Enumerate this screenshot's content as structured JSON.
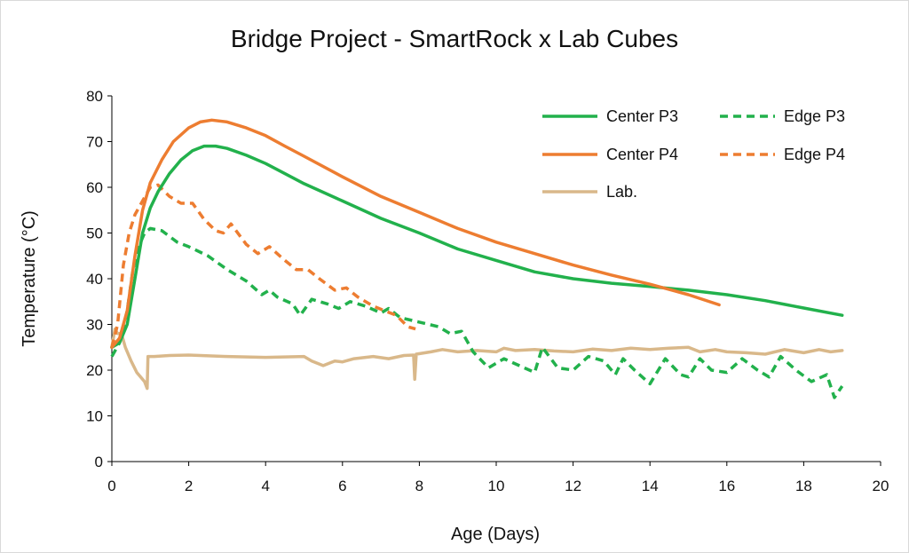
{
  "chart_data": {
    "type": "line",
    "title": "Bridge Project - SmartRock x Lab Cubes",
    "xlabel": "Age (Days)",
    "ylabel": "Temperature (°C)",
    "xlim": [
      0,
      20
    ],
    "ylim": [
      0,
      80
    ],
    "x_ticks": [
      0,
      2,
      4,
      6,
      8,
      10,
      12,
      14,
      16,
      18,
      20
    ],
    "y_ticks": [
      0,
      10,
      20,
      30,
      40,
      50,
      60,
      70,
      80
    ],
    "grid": false,
    "legend_position": "top-right",
    "series": [
      {
        "name": "Center P3",
        "color": "#22b14c",
        "dash": "solid",
        "points": [
          [
            0,
            25
          ],
          [
            0.2,
            26
          ],
          [
            0.4,
            30
          ],
          [
            0.6,
            40
          ],
          [
            0.8,
            50
          ],
          [
            1.0,
            55.5
          ],
          [
            1.2,
            59
          ],
          [
            1.5,
            63
          ],
          [
            1.8,
            66
          ],
          [
            2.1,
            68
          ],
          [
            2.4,
            69
          ],
          [
            2.7,
            69
          ],
          [
            3.0,
            68.5
          ],
          [
            3.5,
            67
          ],
          [
            4.0,
            65.2
          ],
          [
            4.5,
            63
          ],
          [
            5.0,
            60.8
          ],
          [
            6.0,
            57
          ],
          [
            7.0,
            53.2
          ],
          [
            8.0,
            50
          ],
          [
            9.0,
            46.5
          ],
          [
            10.0,
            44
          ],
          [
            11.0,
            41.5
          ],
          [
            12.0,
            40
          ],
          [
            13.0,
            39
          ],
          [
            14.0,
            38.3
          ],
          [
            15.0,
            37.5
          ],
          [
            16.0,
            36.5
          ],
          [
            17.0,
            35.2
          ],
          [
            18.0,
            33.6
          ],
          [
            19.0,
            32
          ]
        ]
      },
      {
        "name": "Edge P3",
        "color": "#22b14c",
        "dash": "dashed",
        "points": [
          [
            0,
            23
          ],
          [
            0.2,
            26
          ],
          [
            0.4,
            33
          ],
          [
            0.55,
            42
          ],
          [
            0.7,
            47
          ],
          [
            0.85,
            50
          ],
          [
            1.0,
            51
          ],
          [
            1.3,
            50.5
          ],
          [
            1.7,
            48
          ],
          [
            2.0,
            47
          ],
          [
            2.5,
            45
          ],
          [
            3.0,
            42
          ],
          [
            3.5,
            39.5
          ],
          [
            3.9,
            36.5
          ],
          [
            4.1,
            37.5
          ],
          [
            4.3,
            36
          ],
          [
            4.7,
            34.5
          ],
          [
            4.9,
            32
          ],
          [
            5.2,
            35.5
          ],
          [
            5.6,
            34.5
          ],
          [
            5.9,
            33.5
          ],
          [
            6.2,
            35
          ],
          [
            6.6,
            34
          ],
          [
            7.0,
            32.5
          ],
          [
            7.2,
            33.5
          ],
          [
            7.5,
            31.5
          ],
          [
            8.0,
            30.5
          ],
          [
            8.5,
            29.5
          ],
          [
            8.8,
            28
          ],
          [
            9.1,
            28.5
          ],
          [
            9.4,
            24
          ],
          [
            9.8,
            20.5
          ],
          [
            10.2,
            22.5
          ],
          [
            10.6,
            21
          ],
          [
            11.0,
            19.5
          ],
          [
            11.2,
            25
          ],
          [
            11.6,
            20.5
          ],
          [
            12.0,
            20
          ],
          [
            12.4,
            23
          ],
          [
            12.8,
            22
          ],
          [
            13.1,
            19
          ],
          [
            13.3,
            22.5
          ],
          [
            13.6,
            20
          ],
          [
            14.0,
            17
          ],
          [
            14.4,
            22.5
          ],
          [
            14.8,
            19
          ],
          [
            15.0,
            18.5
          ],
          [
            15.3,
            22.5
          ],
          [
            15.6,
            20
          ],
          [
            16.0,
            19.5
          ],
          [
            16.4,
            22.5
          ],
          [
            16.8,
            20
          ],
          [
            17.1,
            18.5
          ],
          [
            17.4,
            23
          ],
          [
            17.8,
            20
          ],
          [
            18.2,
            17.5
          ],
          [
            18.6,
            19
          ],
          [
            18.8,
            14
          ],
          [
            19.0,
            16.5
          ]
        ]
      },
      {
        "name": "Center P4",
        "color": "#ed7d31",
        "dash": "solid",
        "points": [
          [
            0,
            25
          ],
          [
            0.2,
            27
          ],
          [
            0.4,
            33
          ],
          [
            0.6,
            45
          ],
          [
            0.8,
            55
          ],
          [
            1.0,
            61
          ],
          [
            1.3,
            66
          ],
          [
            1.6,
            70
          ],
          [
            2.0,
            73
          ],
          [
            2.3,
            74.3
          ],
          [
            2.6,
            74.7
          ],
          [
            3.0,
            74.3
          ],
          [
            3.5,
            73
          ],
          [
            4.0,
            71.3
          ],
          [
            4.5,
            69
          ],
          [
            5.0,
            66.8
          ],
          [
            6.0,
            62.3
          ],
          [
            7.0,
            58
          ],
          [
            8.0,
            54.5
          ],
          [
            9.0,
            51
          ],
          [
            10.0,
            48
          ],
          [
            11.0,
            45.5
          ],
          [
            12.0,
            43
          ],
          [
            13.0,
            40.8
          ],
          [
            14.0,
            38.8
          ],
          [
            15.0,
            36.5
          ],
          [
            15.8,
            34.3
          ]
        ]
      },
      {
        "name": "Edge P4",
        "color": "#ed7d31",
        "dash": "dashed",
        "points": [
          [
            0,
            25
          ],
          [
            0.15,
            30
          ],
          [
            0.3,
            43
          ],
          [
            0.45,
            50
          ],
          [
            0.6,
            54
          ],
          [
            0.8,
            57
          ],
          [
            1.0,
            60
          ],
          [
            1.2,
            60.5
          ],
          [
            1.5,
            58
          ],
          [
            1.8,
            56.5
          ],
          [
            2.1,
            56.5
          ],
          [
            2.4,
            53
          ],
          [
            2.7,
            50.5
          ],
          [
            2.9,
            50
          ],
          [
            3.1,
            52
          ],
          [
            3.5,
            47.5
          ],
          [
            3.8,
            45.5
          ],
          [
            4.1,
            47
          ],
          [
            4.5,
            44
          ],
          [
            4.8,
            42
          ],
          [
            5.1,
            42
          ],
          [
            5.4,
            40
          ],
          [
            5.8,
            37.5
          ],
          [
            6.1,
            38
          ],
          [
            6.4,
            36
          ],
          [
            6.8,
            34
          ],
          [
            7.1,
            33
          ],
          [
            7.4,
            32
          ],
          [
            7.7,
            29.5
          ],
          [
            7.9,
            29
          ]
        ]
      },
      {
        "name": "Lab.",
        "color": "#d9b88a",
        "dash": "solid",
        "points": [
          [
            0,
            25
          ],
          [
            0.08,
            29
          ],
          [
            0.15,
            28
          ],
          [
            0.25,
            28
          ],
          [
            0.35,
            25
          ],
          [
            0.5,
            22
          ],
          [
            0.65,
            19.5
          ],
          [
            0.85,
            17.5
          ],
          [
            0.92,
            16
          ],
          [
            0.94,
            23
          ],
          [
            1.1,
            23
          ],
          [
            1.5,
            23.2
          ],
          [
            2.0,
            23.3
          ],
          [
            3.0,
            23
          ],
          [
            4.0,
            22.8
          ],
          [
            5.0,
            23
          ],
          [
            5.2,
            22
          ],
          [
            5.5,
            21
          ],
          [
            5.8,
            22
          ],
          [
            6.0,
            21.8
          ],
          [
            6.3,
            22.5
          ],
          [
            6.8,
            23
          ],
          [
            7.2,
            22.5
          ],
          [
            7.6,
            23.2
          ],
          [
            7.85,
            23.3
          ],
          [
            7.88,
            18
          ],
          [
            7.92,
            23.5
          ],
          [
            8.3,
            24
          ],
          [
            8.6,
            24.5
          ],
          [
            9.0,
            24
          ],
          [
            9.5,
            24.3
          ],
          [
            10.0,
            24
          ],
          [
            10.2,
            24.8
          ],
          [
            10.5,
            24.3
          ],
          [
            11.0,
            24.5
          ],
          [
            11.5,
            24.2
          ],
          [
            12.0,
            24
          ],
          [
            12.5,
            24.6
          ],
          [
            13.0,
            24.3
          ],
          [
            13.5,
            24.8
          ],
          [
            14.0,
            24.5
          ],
          [
            14.5,
            24.8
          ],
          [
            15.0,
            25
          ],
          [
            15.3,
            24
          ],
          [
            15.7,
            24.5
          ],
          [
            16.0,
            24
          ],
          [
            16.5,
            23.8
          ],
          [
            17.0,
            23.5
          ],
          [
            17.5,
            24.5
          ],
          [
            18.0,
            23.8
          ],
          [
            18.4,
            24.5
          ],
          [
            18.7,
            24
          ],
          [
            19.0,
            24.3
          ]
        ]
      }
    ]
  }
}
